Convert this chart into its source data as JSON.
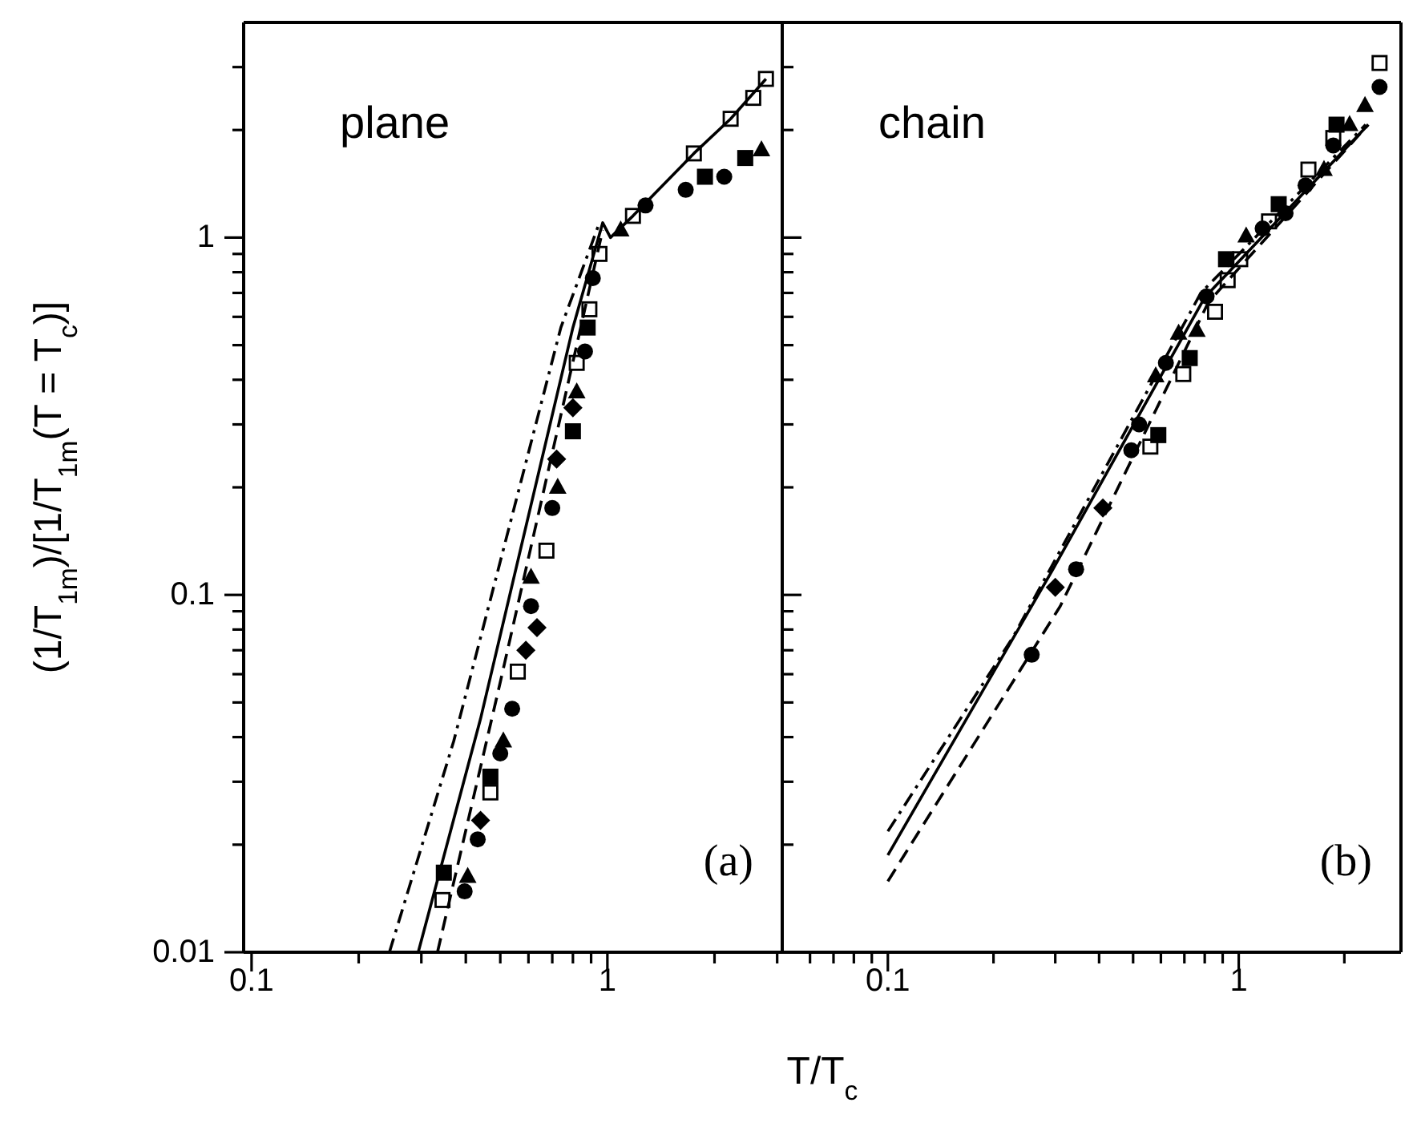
{
  "chart_data": [
    {
      "type": "scatter",
      "log": "xy",
      "xlabel": "T/T$_{c}$",
      "ylabel": "(1/T$_{1m}$)/[1/T$_{1m}$(T = T$_{c}$)]",
      "annotations": [
        "plane",
        "(a)"
      ],
      "xlim": [
        0.095,
        3.1
      ],
      "ylim": [
        0.01,
        4
      ],
      "xticks": [
        {
          "value": 0.1,
          "label": "0.1"
        },
        {
          "value": 0.2,
          "label": null
        },
        {
          "value": 0.3,
          "label": null
        },
        {
          "value": 0.4,
          "label": null
        },
        {
          "value": 0.5,
          "label": null
        },
        {
          "value": 0.6,
          "label": null
        },
        {
          "value": 0.7,
          "label": null
        },
        {
          "value": 0.8,
          "label": null
        },
        {
          "value": 0.9,
          "label": null
        },
        1,
        {
          "value": 2,
          "label": null
        },
        {
          "value": 3,
          "label": null
        }
      ],
      "yticks": [
        0.01,
        {
          "value": 0.02,
          "label": null
        },
        {
          "value": 0.03,
          "label": null
        },
        {
          "value": 0.04,
          "label": null
        },
        {
          "value": 0.05,
          "label": null
        },
        {
          "value": 0.06,
          "label": null
        },
        {
          "value": 0.07,
          "label": null
        },
        {
          "value": 0.08,
          "label": null
        },
        {
          "value": 0.09,
          "label": null
        },
        0.1,
        {
          "value": 0.2,
          "label": null
        },
        {
          "value": 0.3,
          "label": null
        },
        {
          "value": 0.4,
          "label": null
        },
        {
          "value": 0.5,
          "label": null
        },
        {
          "value": 0.6,
          "label": null
        },
        {
          "value": 0.7,
          "label": null
        },
        {
          "value": 0.8,
          "label": null
        },
        {
          "value": 0.9,
          "label": null
        },
        1,
        {
          "value": 2,
          "label": null
        },
        {
          "value": 3,
          "label": null
        }
      ],
      "series": [
        {
          "type": "line",
          "line_style": "solid",
          "color": "#000000",
          "x": [
            0.294,
            0.44,
            0.8,
            0.97,
            1.02,
            1.18,
            1.75,
            2.22,
            2.79
          ],
          "values": [
            0.01,
            0.045,
            0.56,
            1.1,
            1.0,
            1.15,
            1.72,
            2.15,
            2.78
          ]
        },
        {
          "type": "line",
          "line_style": "dashed",
          "color": "#000000",
          "x": [
            0.333,
            0.5,
            0.82,
            0.97
          ],
          "values": [
            0.01,
            0.057,
            0.5,
            1.05
          ]
        },
        {
          "type": "line",
          "line_style": "dashdot",
          "color": "#000000",
          "x": [
            0.244,
            0.37,
            0.74,
            0.95
          ],
          "values": [
            0.01,
            0.039,
            0.56,
            1.1
          ]
        },
        {
          "marker": "square-open",
          "color": "#000000",
          "x": [
            0.344,
            0.469,
            0.56,
            0.674,
            0.82,
            0.89,
            0.95,
            1.18,
            1.75,
            2.22,
            2.57,
            2.79
          ],
          "values": [
            0.014,
            0.028,
            0.061,
            0.133,
            0.446,
            0.63,
            0.9,
            1.15,
            1.72,
            2.15,
            2.46,
            2.78
          ]
        },
        {
          "marker": "circle",
          "color": "#000000",
          "x": [
            0.397,
            0.432,
            0.5,
            0.54,
            0.61,
            0.7,
            0.865,
            0.91,
            1.28,
            1.66,
            2.13
          ],
          "values": [
            0.0148,
            0.0207,
            0.036,
            0.048,
            0.093,
            0.175,
            0.48,
            0.77,
            1.23,
            1.36,
            1.48
          ]
        },
        {
          "marker": "square",
          "color": "#000000",
          "x": [
            0.347,
            0.469,
            0.8,
            0.88,
            1.88,
            2.44
          ],
          "values": [
            0.0167,
            0.031,
            0.287,
            0.56,
            1.48,
            1.67
          ]
        },
        {
          "marker": "triangle",
          "color": "#000000",
          "x": [
            0.405,
            0.51,
            0.61,
            0.725,
            0.82,
            1.09,
            2.71
          ],
          "values": [
            0.0163,
            0.039,
            0.112,
            0.2,
            0.37,
            1.05,
            1.76
          ]
        },
        {
          "marker": "diamond",
          "color": "#000000",
          "x": [
            0.44,
            0.59,
            0.634,
            0.72,
            0.8
          ],
          "values": [
            0.0234,
            0.07,
            0.081,
            0.24,
            0.334
          ]
        }
      ]
    },
    {
      "type": "scatter",
      "log": "xy",
      "tick_labels": "x",
      "annotations": [
        "chain",
        "(b)"
      ],
      "xlim": [
        0.05,
        2.9
      ],
      "ylim": [
        0.01,
        4
      ],
      "xticks": [
        {
          "value": 0.06,
          "label": null
        },
        {
          "value": 0.07,
          "label": null
        },
        {
          "value": 0.08,
          "label": null
        },
        {
          "value": 0.09,
          "label": null
        },
        {
          "value": 0.1,
          "label": "0.1"
        },
        {
          "value": 0.2,
          "label": null
        },
        {
          "value": 0.3,
          "label": null
        },
        {
          "value": 0.4,
          "label": null
        },
        {
          "value": 0.5,
          "label": null
        },
        {
          "value": 0.6,
          "label": null
        },
        {
          "value": 0.7,
          "label": null
        },
        {
          "value": 0.8,
          "label": null
        },
        {
          "value": 0.9,
          "label": null
        },
        1,
        {
          "value": 2,
          "label": null
        }
      ],
      "yticks": [
        0.01,
        {
          "value": 0.02,
          "label": null
        },
        {
          "value": 0.03,
          "label": null
        },
        {
          "value": 0.04,
          "label": null
        },
        {
          "value": 0.05,
          "label": null
        },
        {
          "value": 0.06,
          "label": null
        },
        {
          "value": 0.07,
          "label": null
        },
        {
          "value": 0.08,
          "label": null
        },
        {
          "value": 0.09,
          "label": null
        },
        0.1,
        {
          "value": 0.2,
          "label": null
        },
        {
          "value": 0.3,
          "label": null
        },
        {
          "value": 0.4,
          "label": null
        },
        {
          "value": 0.5,
          "label": null
        },
        {
          "value": 0.6,
          "label": null
        },
        {
          "value": 0.7,
          "label": null
        },
        {
          "value": 0.8,
          "label": null
        },
        {
          "value": 0.9,
          "label": null
        },
        1,
        {
          "value": 2,
          "label": null
        },
        {
          "value": 3,
          "label": null
        }
      ],
      "series": [
        {
          "type": "line",
          "line_style": "solid",
          "color": "#000000",
          "x": [
            0.1,
            0.294,
            0.8,
            2.34
          ],
          "values": [
            0.0187,
            0.117,
            0.68,
            2.07
          ]
        },
        {
          "type": "line",
          "line_style": "dashed",
          "color": "#000000",
          "x": [
            0.1,
            0.31,
            0.82,
            2.34
          ],
          "values": [
            0.0158,
            0.093,
            0.66,
            2.07
          ]
        },
        {
          "type": "line",
          "line_style": "dashdot",
          "color": "#000000",
          "x": [
            0.1,
            0.227,
            0.78,
            2.3
          ],
          "values": [
            0.0218,
            0.076,
            0.7,
            2.07
          ]
        },
        {
          "marker": "square-open",
          "color": "#000000",
          "x": [
            0.56,
            0.695,
            0.856,
            0.93,
            1.01,
            1.22,
            1.58,
            1.86,
            2.52
          ],
          "values": [
            0.26,
            0.415,
            0.62,
            0.76,
            0.87,
            1.11,
            1.55,
            1.9,
            3.08
          ]
        },
        {
          "marker": "circle",
          "color": "#000000",
          "x": [
            0.257,
            0.344,
            0.494,
            0.52,
            0.62,
            0.81,
            1.17,
            1.36,
            1.55,
            1.86,
            2.52
          ],
          "values": [
            0.068,
            0.118,
            0.254,
            0.3,
            0.446,
            0.685,
            1.06,
            1.17,
            1.4,
            1.81,
            2.64
          ]
        },
        {
          "marker": "square",
          "color": "#000000",
          "x": [
            0.59,
            0.725,
            0.92,
            1.3,
            1.9
          ],
          "values": [
            0.28,
            0.46,
            0.87,
            1.24,
            2.07
          ]
        },
        {
          "marker": "triangle",
          "color": "#000000",
          "x": [
            0.58,
            0.674,
            0.76,
            1.05,
            1.75,
            2.07,
            2.29
          ],
          "values": [
            0.41,
            0.54,
            0.55,
            1.01,
            1.55,
            2.07,
            2.34
          ]
        },
        {
          "marker": "diamond",
          "color": "#000000",
          "x": [
            0.3,
            0.41
          ],
          "values": [
            0.105,
            0.175
          ]
        }
      ]
    }
  ]
}
